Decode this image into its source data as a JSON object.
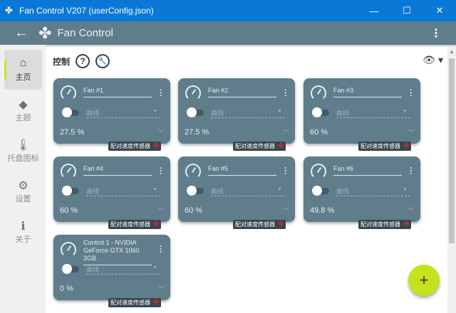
{
  "window": {
    "title": "Fan Control V207 (userConfig.json)",
    "minimize": "—",
    "maximize": "☐",
    "close": "✕"
  },
  "header": {
    "back": "←",
    "logo": "✤",
    "title": "Fan Control",
    "more": "⋮"
  },
  "sidebar": {
    "items": [
      {
        "label": "主页",
        "icon": "⌂",
        "icon_name": "home-icon",
        "active": true
      },
      {
        "label": "主题",
        "icon": "◆",
        "icon_name": "paint-bucket-icon"
      },
      {
        "label": "托盘图标",
        "icon": "🌡",
        "icon_name": "thermometer-icon"
      },
      {
        "label": "设置",
        "icon": "⚙",
        "icon_name": "gear-icon"
      },
      {
        "label": "关于",
        "icon": "ℹ",
        "icon_name": "info-icon"
      }
    ]
  },
  "main": {
    "section_title": "控制",
    "help": "?",
    "wrench": "🔧",
    "eye": "👁 ▾",
    "fab": "+"
  },
  "cards": [
    {
      "name": "Fan #1",
      "curve": "曲线",
      "value": "27.5 %",
      "badge": "配对速度传感器"
    },
    {
      "name": "Fan #2",
      "curve": "曲线",
      "value": "27.5 %",
      "badge": "配对速度传感器"
    },
    {
      "name": "Fan #3",
      "curve": "曲线",
      "value": "60 %",
      "badge": "配对速度传感器"
    },
    {
      "name": "Fan #4",
      "curve": "曲线",
      "value": "60 %",
      "badge": "配对速度传感器"
    },
    {
      "name": "Fan #5",
      "curve": "曲线",
      "value": "60 %",
      "badge": "配对速度传感器"
    },
    {
      "name": "Fan #6",
      "curve": "曲线",
      "value": "49.8 %",
      "badge": "配对速度传感器"
    },
    {
      "name": "Control 1 - NVIDIA GeForce GTX 1060 3GB",
      "curve": "曲线",
      "value": "0 %",
      "badge": "配对速度传感器"
    }
  ],
  "colors": {
    "titlebar": "#0a78d7",
    "header": "#607d8b",
    "card": "#607d8b",
    "accent": "#c6e21d",
    "badge": "#37474f",
    "fan_icon": "#d8262b"
  }
}
